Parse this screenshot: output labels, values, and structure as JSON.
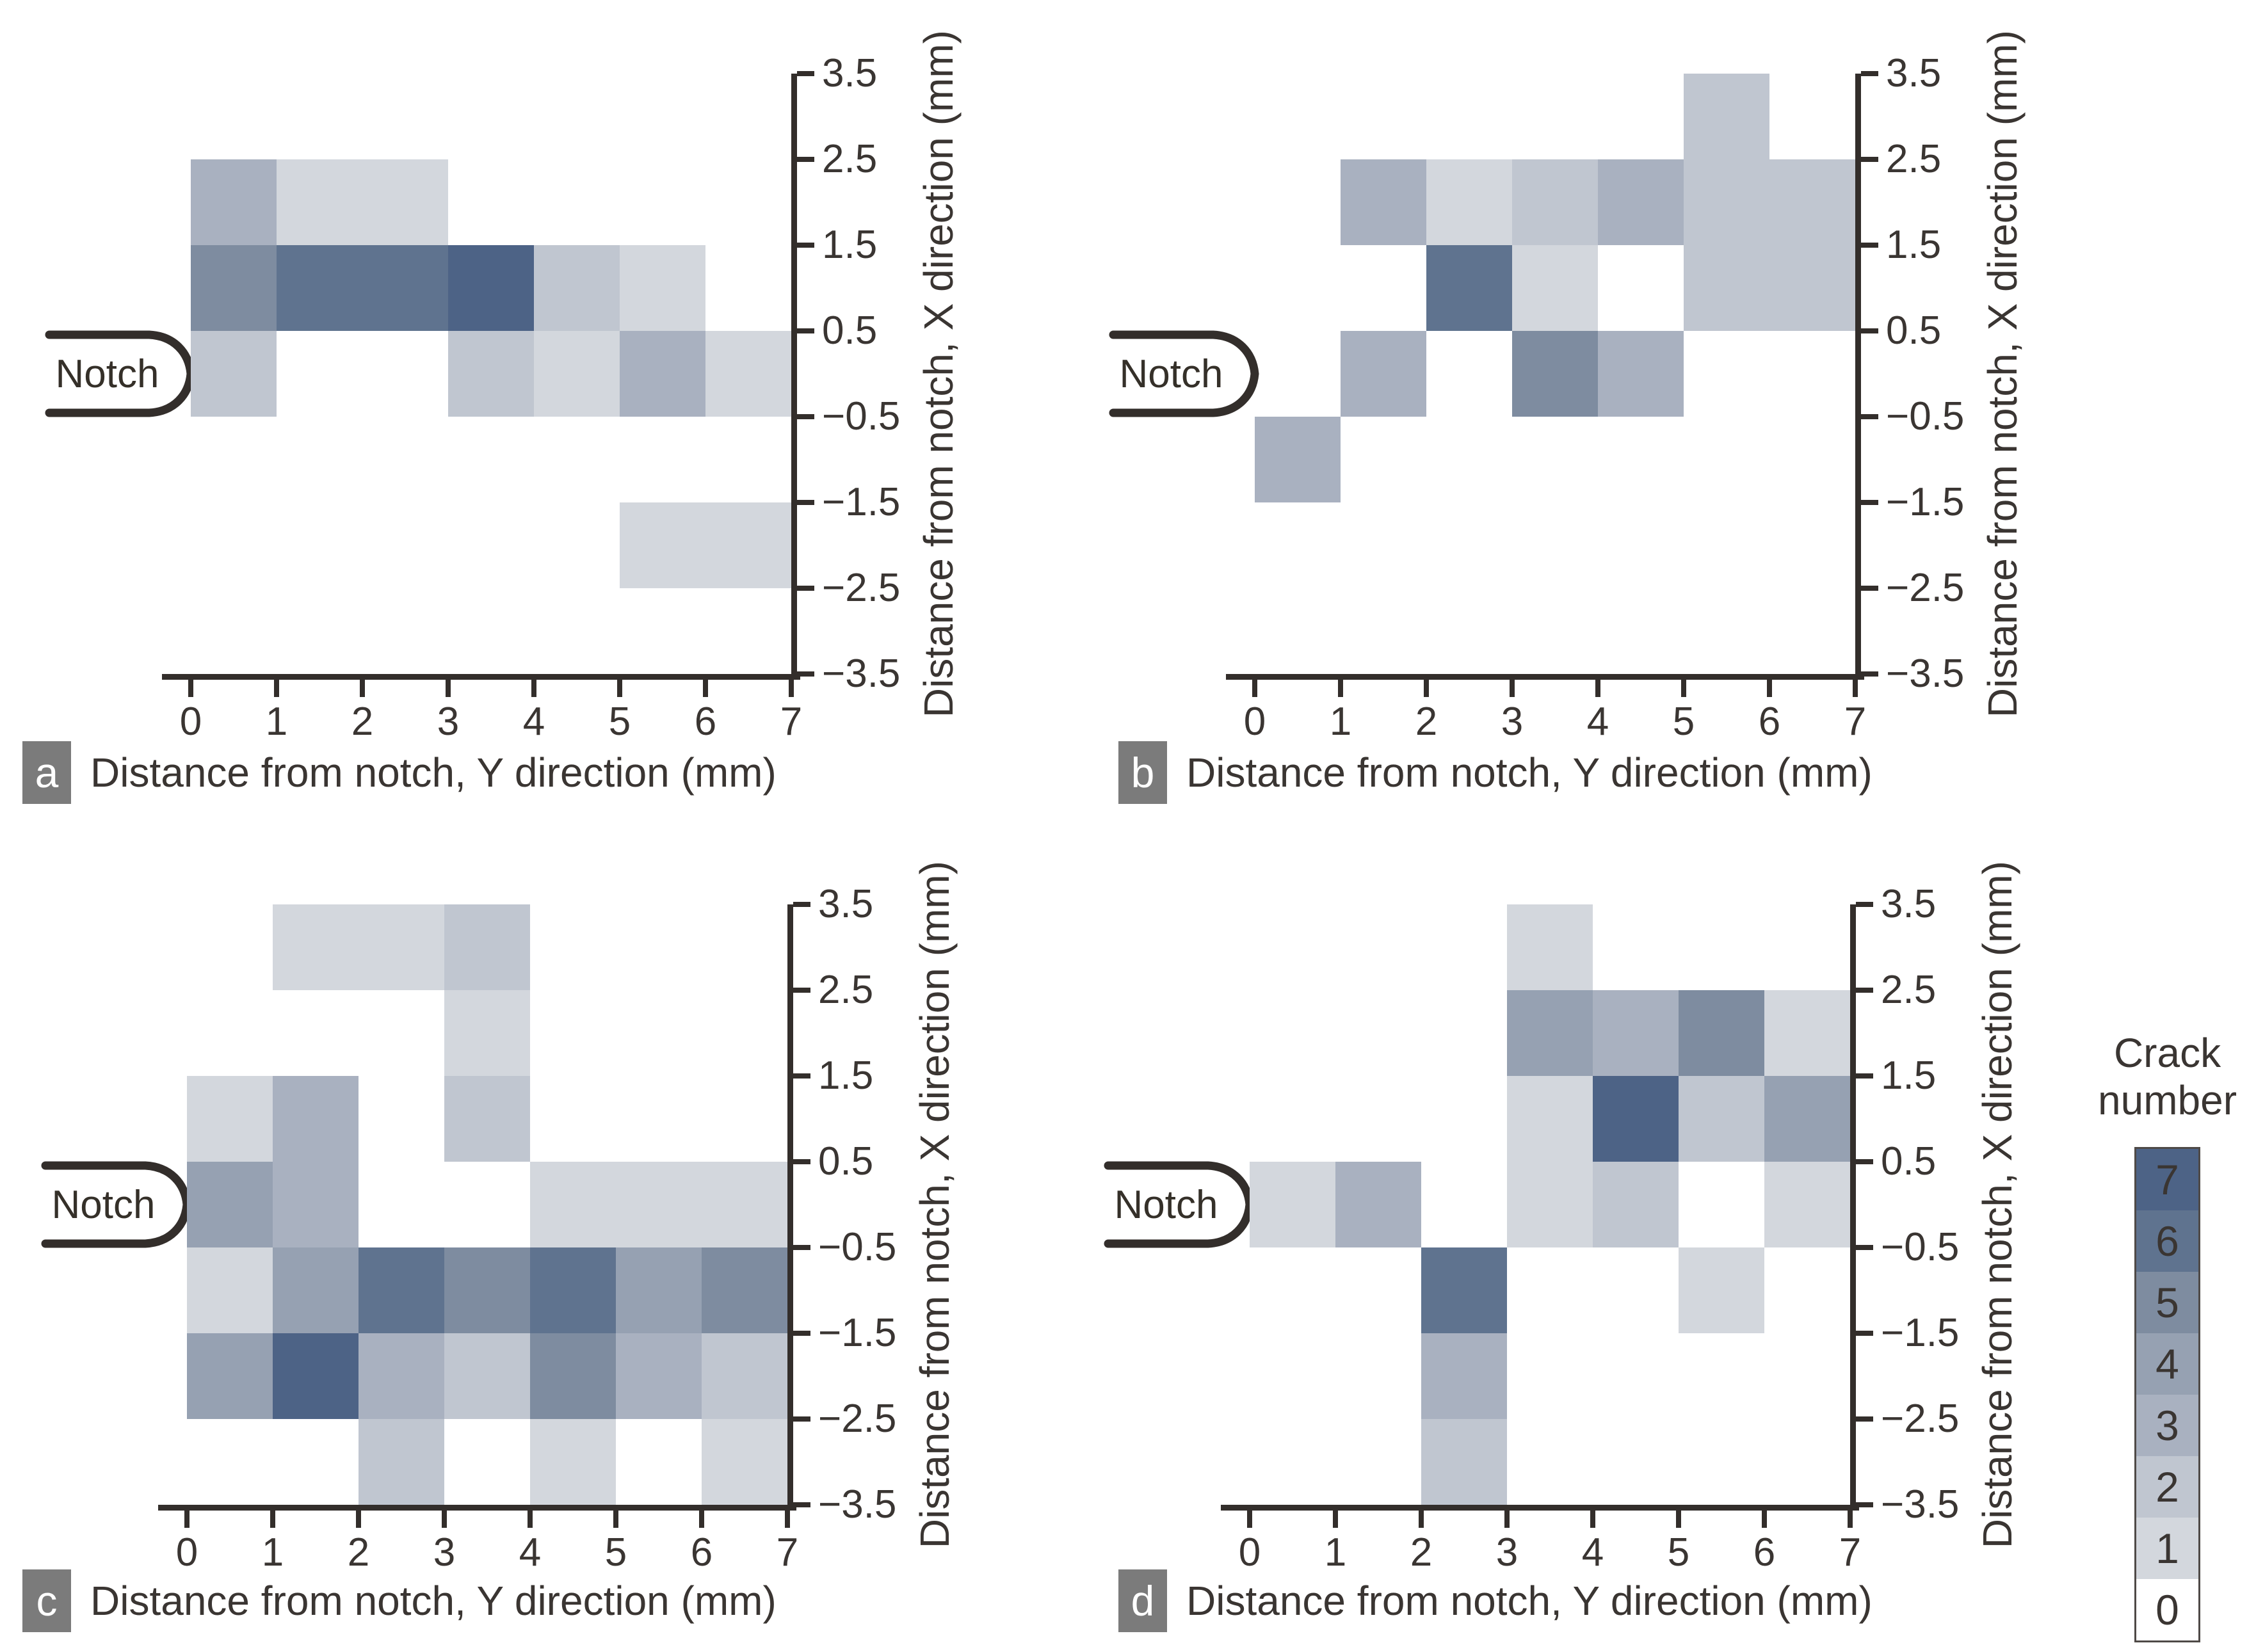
{
  "figure_type": "2x2 crack-density heatmap figure with shared colorbar",
  "palette": {
    "0": "#ffffff",
    "1": "#d3d7dd",
    "2": "#c0c6d0",
    "3": "#a9b1c0",
    "4": "#96a1b2",
    "5": "#7e8ca0",
    "6": "#5f738f",
    "7": "#4d6386"
  },
  "text_color": "#3a3532",
  "axis_color": "#332e2b",
  "badge_color": "#7b7b7b",
  "chart_data": [
    {
      "type": "heatmap",
      "label": "a",
      "xlabel": "Distance from notch, Y direction (mm)",
      "ylabel": "Distance from notch, X direction (mm)",
      "notch_label": "Notch",
      "x_ticks": [
        "0",
        "1",
        "2",
        "3",
        "4",
        "5",
        "6",
        "7"
      ],
      "y_ticks": [
        "3.5",
        "2.5",
        "1.5",
        "0.5",
        "−0.5",
        "−1.5",
        "−2.5",
        "−3.5"
      ],
      "x_range": [
        0,
        7
      ],
      "y_range": [
        -3.5,
        3.5
      ],
      "row_bands_x_dir": [
        "3.5..2.5",
        "2.5..1.5",
        "1.5..0.5",
        "0.5..-0.5",
        "-0.5..-1.5",
        "-1.5..-2.5",
        "-2.5..-3.5"
      ],
      "values": [
        [
          0,
          0,
          0,
          0,
          0,
          0,
          0
        ],
        [
          3,
          1,
          1,
          0,
          0,
          0,
          0
        ],
        [
          5,
          6,
          6,
          7,
          2,
          1,
          0
        ],
        [
          2,
          0,
          0,
          2,
          1,
          3,
          1
        ],
        [
          0,
          0,
          0,
          0,
          0,
          0,
          0
        ],
        [
          0,
          0,
          0,
          0,
          0,
          1,
          1
        ],
        [
          0,
          0,
          0,
          0,
          0,
          0,
          0
        ]
      ]
    },
    {
      "type": "heatmap",
      "label": "b",
      "xlabel": "Distance from notch, Y direction (mm)",
      "ylabel": "Distance from notch, X direction (mm)",
      "notch_label": "Notch",
      "x_ticks": [
        "0",
        "1",
        "2",
        "3",
        "4",
        "5",
        "6",
        "7"
      ],
      "y_ticks": [
        "3.5",
        "2.5",
        "1.5",
        "0.5",
        "−0.5",
        "−1.5",
        "−2.5",
        "−3.5"
      ],
      "x_range": [
        0,
        7
      ],
      "y_range": [
        -3.5,
        3.5
      ],
      "row_bands_x_dir": [
        "3.5..2.5",
        "2.5..1.5",
        "1.5..0.5",
        "0.5..-0.5",
        "-0.5..-1.5",
        "-1.5..-2.5",
        "-2.5..-3.5"
      ],
      "values": [
        [
          0,
          0,
          0,
          0,
          0,
          2,
          0
        ],
        [
          0,
          3,
          1,
          2,
          3,
          2,
          2
        ],
        [
          0,
          0,
          6,
          1,
          0,
          2,
          2
        ],
        [
          0,
          3,
          0,
          5,
          3,
          0,
          0
        ],
        [
          3,
          0,
          0,
          0,
          0,
          0,
          0
        ],
        [
          0,
          0,
          0,
          0,
          0,
          0,
          0
        ],
        [
          0,
          0,
          0,
          0,
          0,
          0,
          0
        ]
      ]
    },
    {
      "type": "heatmap",
      "label": "c",
      "xlabel": "Distance from notch, Y direction (mm)",
      "ylabel": "Distance from notch, X direction (mm)",
      "notch_label": "Notch",
      "x_ticks": [
        "0",
        "1",
        "2",
        "3",
        "4",
        "5",
        "6",
        "7"
      ],
      "y_ticks": [
        "3.5",
        "2.5",
        "1.5",
        "0.5",
        "−0.5",
        "−1.5",
        "−2.5",
        "−3.5"
      ],
      "x_range": [
        0,
        7
      ],
      "y_range": [
        -3.5,
        3.5
      ],
      "row_bands_x_dir": [
        "3.5..2.5",
        "2.5..1.5",
        "1.5..0.5",
        "0.5..-0.5",
        "-0.5..-1.5",
        "-1.5..-2.5",
        "-2.5..-3.5"
      ],
      "values": [
        [
          0,
          1,
          1,
          2,
          0,
          0,
          0
        ],
        [
          0,
          0,
          0,
          1,
          0,
          0,
          0
        ],
        [
          1,
          3,
          0,
          2,
          0,
          0,
          0
        ],
        [
          4,
          3,
          0,
          0,
          1,
          1,
          1
        ],
        [
          1,
          4,
          6,
          5,
          6,
          4,
          5
        ],
        [
          4,
          7,
          3,
          2,
          5,
          3,
          2
        ],
        [
          0,
          0,
          2,
          0,
          1,
          0,
          1
        ]
      ]
    },
    {
      "type": "heatmap",
      "label": "d",
      "xlabel": "Distance from notch, Y direction (mm)",
      "ylabel": "Distance from notch, X direction (mm)",
      "notch_label": "Notch",
      "x_ticks": [
        "0",
        "1",
        "2",
        "3",
        "4",
        "5",
        "6",
        "7"
      ],
      "y_ticks": [
        "3.5",
        "2.5",
        "1.5",
        "0.5",
        "−0.5",
        "−1.5",
        "−2.5",
        "−3.5"
      ],
      "x_range": [
        0,
        7
      ],
      "y_range": [
        -3.5,
        3.5
      ],
      "row_bands_x_dir": [
        "3.5..2.5",
        "2.5..1.5",
        "1.5..0.5",
        "0.5..-0.5",
        "-0.5..-1.5",
        "-1.5..-2.5",
        "-2.5..-3.5"
      ],
      "values": [
        [
          0,
          0,
          0,
          1,
          0,
          0,
          0
        ],
        [
          0,
          0,
          0,
          4,
          3,
          5,
          1
        ],
        [
          0,
          0,
          0,
          1,
          7,
          2,
          4
        ],
        [
          1,
          3,
          0,
          1,
          2,
          0,
          1
        ],
        [
          0,
          0,
          6,
          0,
          0,
          1,
          0
        ],
        [
          0,
          0,
          3,
          0,
          0,
          0,
          0
        ],
        [
          0,
          0,
          2,
          0,
          0,
          0,
          0
        ]
      ]
    }
  ],
  "colorbar": {
    "title_lines": [
      "Crack",
      "number"
    ],
    "levels": [
      "7",
      "6",
      "5",
      "4",
      "3",
      "2",
      "1",
      "0"
    ]
  }
}
